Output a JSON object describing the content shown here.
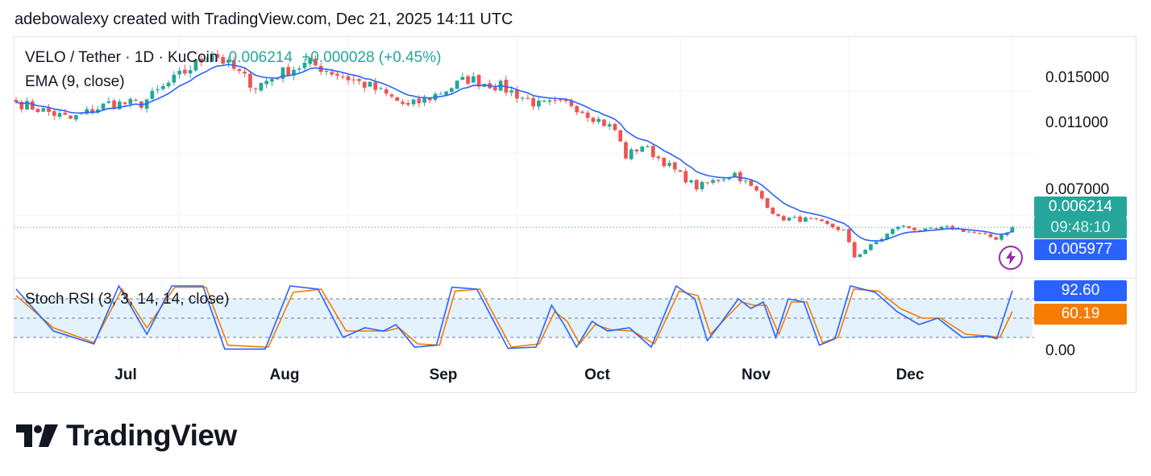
{
  "attribution": "adebowalexy created with TradingView.com, Dec 21, 2025 14:11 UTC",
  "legend": {
    "symbol": "VELO / Tether · 1D · KuCoin",
    "price": "0.006214",
    "change": "+0.000028 (+0.45%)",
    "ema": "EMA (9, close)",
    "stoch": "Stoch RSI (3, 3, 14, 14, close)"
  },
  "price_axis": [
    "0.015000",
    "0.011000",
    "0.007000",
    "0.00"
  ],
  "tags": {
    "last_price": "0.006214",
    "countdown": "09:48:10",
    "ema_value": "0.005977",
    "stoch_k": "92.60",
    "stoch_d": "60.19"
  },
  "months": [
    "Jul",
    "Aug",
    "Sep",
    "Oct",
    "Nov",
    "Dec"
  ],
  "logo_text": "TradingView",
  "colors": {
    "up": "#26a69a",
    "down": "#ef5350",
    "ema": "#2962ff",
    "stoch_k": "#2962ff",
    "stoch_d": "#f57c00",
    "band": "#e3f2fd"
  },
  "chart_data": [
    {
      "type": "candlestick",
      "title": "VELO / Tether · 1D · KuCoin",
      "x_start": "Jun 21",
      "x_end": "Dec 21",
      "close_anchors": [
        {
          "date": "Jun 21",
          "close": 0.0143
        },
        {
          "date": "Jul 1",
          "close": 0.0132
        },
        {
          "date": "Jul 8",
          "close": 0.0142
        },
        {
          "date": "Jul 14",
          "close": 0.0142
        },
        {
          "date": "Jul 21",
          "close": 0.016
        },
        {
          "date": "Jul 27",
          "close": 0.0175
        },
        {
          "date": "Aug 4",
          "close": 0.0153
        },
        {
          "date": "Aug 10",
          "close": 0.0164
        },
        {
          "date": "Aug 14",
          "close": 0.0168
        },
        {
          "date": "Aug 25",
          "close": 0.0153
        },
        {
          "date": "Sep 1",
          "close": 0.014
        },
        {
          "date": "Sep 5",
          "close": 0.0146
        },
        {
          "date": "Sep 12",
          "close": 0.0158
        },
        {
          "date": "Sep 18",
          "close": 0.0153
        },
        {
          "date": "Sep 25",
          "close": 0.0141
        },
        {
          "date": "Oct 1",
          "close": 0.0142
        },
        {
          "date": "Oct 9",
          "close": 0.0125
        },
        {
          "date": "Oct 11",
          "close": 0.0108
        },
        {
          "date": "Oct 14",
          "close": 0.0115
        },
        {
          "date": "Oct 24",
          "close": 0.0088
        },
        {
          "date": "Oct 31",
          "close": 0.0097
        },
        {
          "date": "Nov 4",
          "close": 0.0085
        },
        {
          "date": "Nov 8",
          "close": 0.0068
        },
        {
          "date": "Nov 14",
          "close": 0.0067
        },
        {
          "date": "Nov 20",
          "close": 0.006
        },
        {
          "date": "Nov 22",
          "close": 0.0043
        },
        {
          "date": "Nov 27",
          "close": 0.0055
        },
        {
          "date": "Nov 30",
          "close": 0.0063
        },
        {
          "date": "Dec 5",
          "close": 0.006
        },
        {
          "date": "Dec 10",
          "close": 0.0062
        },
        {
          "date": "Dec 18",
          "close": 0.0055
        },
        {
          "date": "Dec 21",
          "close": 0.006214
        }
      ],
      "ema_last": 0.005977,
      "yticks": [
        0.015,
        0.011,
        0.007
      ],
      "ylim": [
        0.003,
        0.0185
      ]
    },
    {
      "type": "line",
      "title": "Stoch RSI (3, 3, 14, 14, close)",
      "ylim": [
        0,
        100
      ],
      "yticks": [
        0
      ],
      "bands": [
        20,
        50,
        80
      ],
      "series": [
        {
          "name": "K",
          "last": 92.6,
          "anchors": [
            [
              0,
              95
            ],
            [
              12,
              30
            ],
            [
              25,
              10
            ],
            [
              33,
              100
            ],
            [
              42,
              25
            ],
            [
              50,
              100
            ],
            [
              60,
              100
            ],
            [
              67,
              2
            ],
            [
              80,
              2
            ],
            [
              88,
              100
            ],
            [
              97,
              95
            ],
            [
              105,
              20
            ],
            [
              112,
              35
            ],
            [
              118,
              30
            ],
            [
              122,
              40
            ],
            [
              128,
              5
            ],
            [
              135,
              8
            ],
            [
              140,
              98
            ],
            [
              148,
              95
            ],
            [
              158,
              3
            ],
            [
              167,
              5
            ],
            [
              172,
              70
            ],
            [
              176,
              40
            ],
            [
              180,
              5
            ],
            [
              185,
              45
            ],
            [
              190,
              30
            ],
            [
              197,
              35
            ],
            [
              204,
              5
            ],
            [
              212,
              100
            ],
            [
              218,
              80
            ],
            [
              222,
              15
            ],
            [
              226,
              40
            ],
            [
              232,
              80
            ],
            [
              236,
              65
            ],
            [
              240,
              75
            ],
            [
              244,
              20
            ],
            [
              248,
              80
            ],
            [
              253,
              75
            ],
            [
              258,
              8
            ],
            [
              263,
              18
            ],
            [
              268,
              100
            ],
            [
              276,
              90
            ],
            [
              283,
              60
            ],
            [
              290,
              40
            ],
            [
              296,
              50
            ],
            [
              304,
              20
            ],
            [
              312,
              22
            ],
            [
              315,
              18
            ],
            [
              320,
              92.6
            ]
          ]
        },
        {
          "name": "D",
          "last": 60.19,
          "anchors": [
            [
              0,
              85
            ],
            [
              12,
              35
            ],
            [
              25,
              12
            ],
            [
              34,
              95
            ],
            [
              42,
              35
            ],
            [
              51,
              98
            ],
            [
              61,
              98
            ],
            [
              68,
              8
            ],
            [
              81,
              5
            ],
            [
              89,
              90
            ],
            [
              98,
              95
            ],
            [
              106,
              30
            ],
            [
              113,
              30
            ],
            [
              119,
              30
            ],
            [
              123,
              35
            ],
            [
              129,
              10
            ],
            [
              136,
              8
            ],
            [
              141,
              92
            ],
            [
              149,
              95
            ],
            [
              159,
              5
            ],
            [
              168,
              10
            ],
            [
              173,
              60
            ],
            [
              177,
              45
            ],
            [
              181,
              10
            ],
            [
              186,
              40
            ],
            [
              191,
              32
            ],
            [
              198,
              30
            ],
            [
              205,
              10
            ],
            [
              213,
              92
            ],
            [
              219,
              85
            ],
            [
              223,
              25
            ],
            [
              227,
              45
            ],
            [
              233,
              75
            ],
            [
              237,
              70
            ],
            [
              241,
              70
            ],
            [
              245,
              25
            ],
            [
              249,
              75
            ],
            [
              254,
              75
            ],
            [
              259,
              12
            ],
            [
              264,
              20
            ],
            [
              269,
              95
            ],
            [
              277,
              92
            ],
            [
              284,
              65
            ],
            [
              291,
              50
            ],
            [
              297,
              50
            ],
            [
              305,
              25
            ],
            [
              313,
              22
            ],
            [
              316,
              20
            ],
            [
              320,
              60.19
            ]
          ]
        }
      ]
    }
  ]
}
